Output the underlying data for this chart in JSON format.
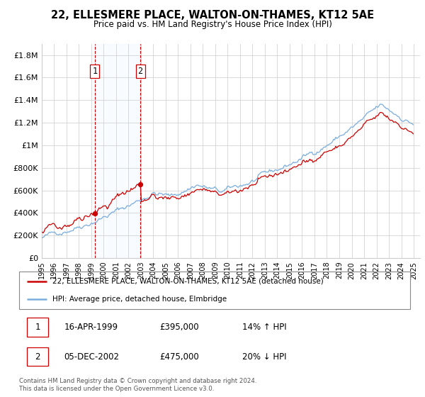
{
  "title": "22, ELLESMERE PLACE, WALTON-ON-THAMES, KT12 5AE",
  "subtitle": "Price paid vs. HM Land Registry's House Price Index (HPI)",
  "ylabel_ticks": [
    "£0",
    "£200K",
    "£400K",
    "£600K",
    "£800K",
    "£1M",
    "£1.2M",
    "£1.4M",
    "£1.6M",
    "£1.8M"
  ],
  "ylabel_values": [
    0,
    200000,
    400000,
    600000,
    800000,
    1000000,
    1200000,
    1400000,
    1600000,
    1800000
  ],
  "ylim": [
    0,
    1900000
  ],
  "purchase1_year": 1999,
  "purchase1_month": 4,
  "purchase1_price": 395000,
  "purchase2_year": 2002,
  "purchase2_month": 12,
  "purchase2_price": 475000,
  "legend_line1": "22, ELLESMERE PLACE, WALTON-ON-THAMES, KT12 5AE (detached house)",
  "legend_line2": "HPI: Average price, detached house, Elmbridge",
  "table_row1": [
    "1",
    "16-APR-1999",
    "£395,000",
    "14% ↑ HPI"
  ],
  "table_row2": [
    "2",
    "05-DEC-2002",
    "£475,000",
    "20% ↓ HPI"
  ],
  "footer": "Contains HM Land Registry data © Crown copyright and database right 2024.\nThis data is licensed under the Open Government Licence v3.0.",
  "line_color_property": "#cc0000",
  "line_color_hpi": "#7aaddd",
  "shade_color": "#ddeeff",
  "vline_color": "#cc0000",
  "xlim_start": 1995,
  "xlim_end": 2025.5
}
